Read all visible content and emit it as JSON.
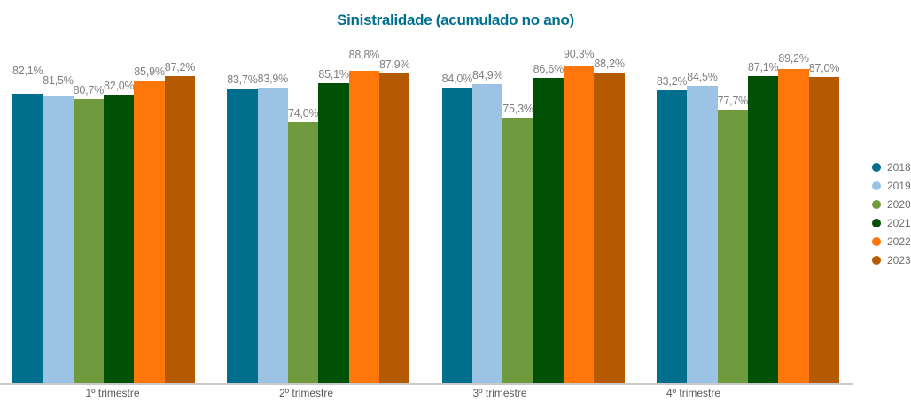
{
  "chart_data": {
    "type": "bar",
    "title": "Sinistralidade (acumulado no ano)",
    "categories": [
      "1º trimestre",
      "2º trimestre",
      "3º trimestre",
      "4º trimestre"
    ],
    "series": [
      {
        "name": "2018",
        "color": "#006F8E",
        "values": [
          82.1,
          83.7,
          84.0,
          83.2
        ],
        "labels": [
          "82,1%",
          "83,7%",
          "84,0%",
          "83,2%"
        ]
      },
      {
        "name": "2019",
        "color": "#9DC3E4",
        "values": [
          81.5,
          83.9,
          84.9,
          84.5
        ],
        "labels": [
          "81,5%",
          "83,9%",
          "84,9%",
          "84,5%"
        ]
      },
      {
        "name": "2020",
        "color": "#6F9A3E",
        "values": [
          80.7,
          74.0,
          75.3,
          77.7
        ],
        "labels": [
          "80,7%",
          "74,0%",
          "75,3%",
          "77,7%"
        ]
      },
      {
        "name": "2021",
        "color": "#005005",
        "values": [
          82.0,
          85.1,
          86.6,
          87.1
        ],
        "labels": [
          "82,0%",
          "85,1%",
          "86,6%",
          "87,1%"
        ]
      },
      {
        "name": "2022",
        "color": "#FF760B",
        "values": [
          85.9,
          88.8,
          90.3,
          89.2
        ],
        "labels": [
          "85,9%",
          "88,8%",
          "90,3%",
          "89,2%"
        ]
      },
      {
        "name": "2023",
        "color": "#B45A00",
        "values": [
          87.2,
          87.9,
          88.2,
          87.0
        ],
        "labels": [
          "87,2%",
          "87,9%",
          "88,2%",
          "87,0%"
        ]
      }
    ],
    "unit": "%",
    "ylim": [
      0,
      90.3
    ],
    "grid": false,
    "legend_position": "right",
    "colors": {
      "title": "#00708F",
      "value_label": "#7F7F7F",
      "axis_label": "#595959",
      "baseline": "#C9C9C9",
      "legend_label": "#6E6E6E"
    }
  }
}
